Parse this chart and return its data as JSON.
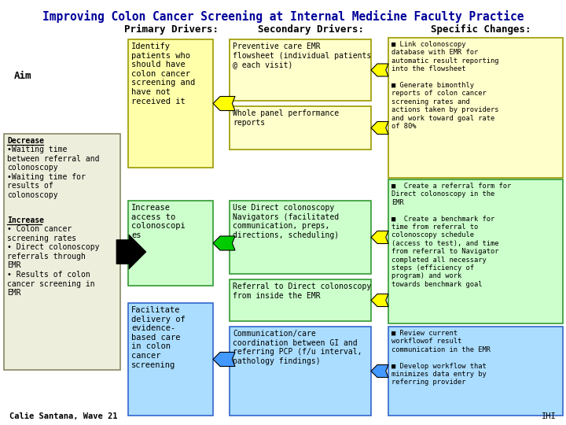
{
  "title": "Improving Colon Cancer Screening at Internal Medicine Faculty Practice",
  "col_headers": [
    "Primary Drivers:",
    "Secondary Drivers:",
    "Specific Changes:"
  ],
  "aim_label": "Aim",
  "primary_drivers": [
    {
      "text": "Identify\npatients who\nshould have\ncolon cancer\nscreening and\nhave not\nreceived it",
      "color": "#ffffaa",
      "border": "#999900"
    },
    {
      "text": "Increase\naccess to\ncolonoscopi\nes",
      "color": "#ccffcc",
      "border": "#339933"
    },
    {
      "text": "Facilitate\ndelivery of\nevidence-\nbased care\nin colon\ncancer\nscreening",
      "color": "#aaddff",
      "border": "#3366cc"
    }
  ],
  "secondary_drivers": [
    {
      "text": "Preventive care EMR\nflowsheet (individual patients\n@ each visit)",
      "color": "#ffffcc",
      "border": "#999900"
    },
    {
      "text": "Whole panel performance\nreports",
      "color": "#ffffcc",
      "border": "#999900"
    },
    {
      "text": "Use Direct colonoscopy\nNavigators (facilitated\ncommunication, preps,\ndirections, scheduling)",
      "color": "#ccffcc",
      "border": "#339933"
    },
    {
      "text": "Referral to Direct colonoscopy\nfrom inside the EMR",
      "color": "#ccffcc",
      "border": "#339933"
    },
    {
      "text": "Communication/care\ncoordination between GI and\nreferring PCP (f/u interval,\npathology findings)",
      "color": "#aaddff",
      "border": "#3366cc"
    }
  ],
  "specific_changes": [
    {
      "text": "■ Link colonoscopy\ndatabase with EMR for\nautomatic result reporting\ninto the flowsheet\n\n■ Generate bimonthly\nreports of colon cancer\nscreening rates and\nactions taken by providers\nand work toward goal rate\nof 80%",
      "color": "#ffffcc",
      "border": "#999900"
    },
    {
      "text": "■  Create a referral form for\nDirect colonoscopy in the\nEMR\n\n■  Create a benchmark for\ntime from referral to\ncolonoscopy schedule\n(access to test), and time\nfrom referral to Navigator\ncompleted all necessary\nsteps (efficiency of\nprogram) and work\ntowards benchmark goal",
      "color": "#ccffcc",
      "border": "#339933"
    },
    {
      "text": "■ Review current\nworkflowof result\ncommunication in the EMR\n\n■ Develop workflow that\nminimizes data entry by\nreferring provider",
      "color": "#aaddff",
      "border": "#3366cc"
    }
  ],
  "aim_decrease_label": "Decrease",
  "aim_decrease_text": "•Waiting time\nbetween referral and\ncolonoscopy\n•Waiting time for\nresults of\ncolonoscopy",
  "aim_increase_label": "Increase",
  "aim_increase_text": "• Colon cancer\nscreening rates\n• Direct colonoscopy\nreferrals through\nEMR\n• Results of colon\ncancer screening in\nEMR",
  "footer_left": "Calie Santana, Wave 21",
  "footer_right": "IHI",
  "bg_color": "#ffffff",
  "aim_box_color": "#eeeedd",
  "aim_box_border": "#888866",
  "arrow_yellow": "#ffff00",
  "arrow_green": "#00cc00",
  "arrow_blue": "#4499ff",
  "arrow_black": "#000000"
}
